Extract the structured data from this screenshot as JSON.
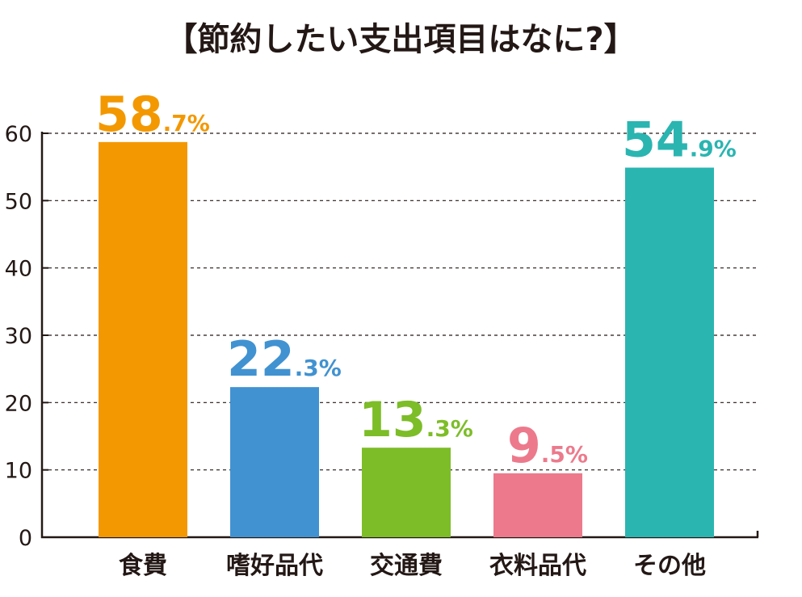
{
  "chart_data": {
    "type": "bar",
    "title": "【節約したい支出項目はなに?】",
    "categories": [
      "食費",
      "嗜好品代",
      "交通費",
      "衣料品代",
      "その他"
    ],
    "values": [
      58.7,
      22.3,
      13.3,
      9.5,
      54.9
    ],
    "value_labels": [
      {
        "int": "58",
        "dec": ".7%"
      },
      {
        "int": "22",
        "dec": ".3%"
      },
      {
        "int": "13",
        "dec": ".3%"
      },
      {
        "int": "9",
        "dec": ".5%"
      },
      {
        "int": "54",
        "dec": ".9%"
      }
    ],
    "colors": [
      "#F39800",
      "#4192D1",
      "#7DBD28",
      "#EC7A8C",
      "#2AB5B1"
    ],
    "yticks": [
      "0",
      "10",
      "20",
      "30",
      "40",
      "50",
      "60"
    ],
    "ylim": [
      0,
      60
    ],
    "grid": true,
    "grid_style": "dashed",
    "xlabel": "",
    "ylabel": ""
  }
}
